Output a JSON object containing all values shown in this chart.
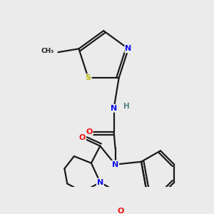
{
  "bg_color": "#ebebeb",
  "bond_color": "#1a1a1a",
  "lw": 1.6,
  "atom_colors": {
    "N": "#1010ee",
    "O": "#ee1010",
    "S": "#b8b800",
    "H": "#4d8080",
    "C": "#1a1a1a"
  }
}
